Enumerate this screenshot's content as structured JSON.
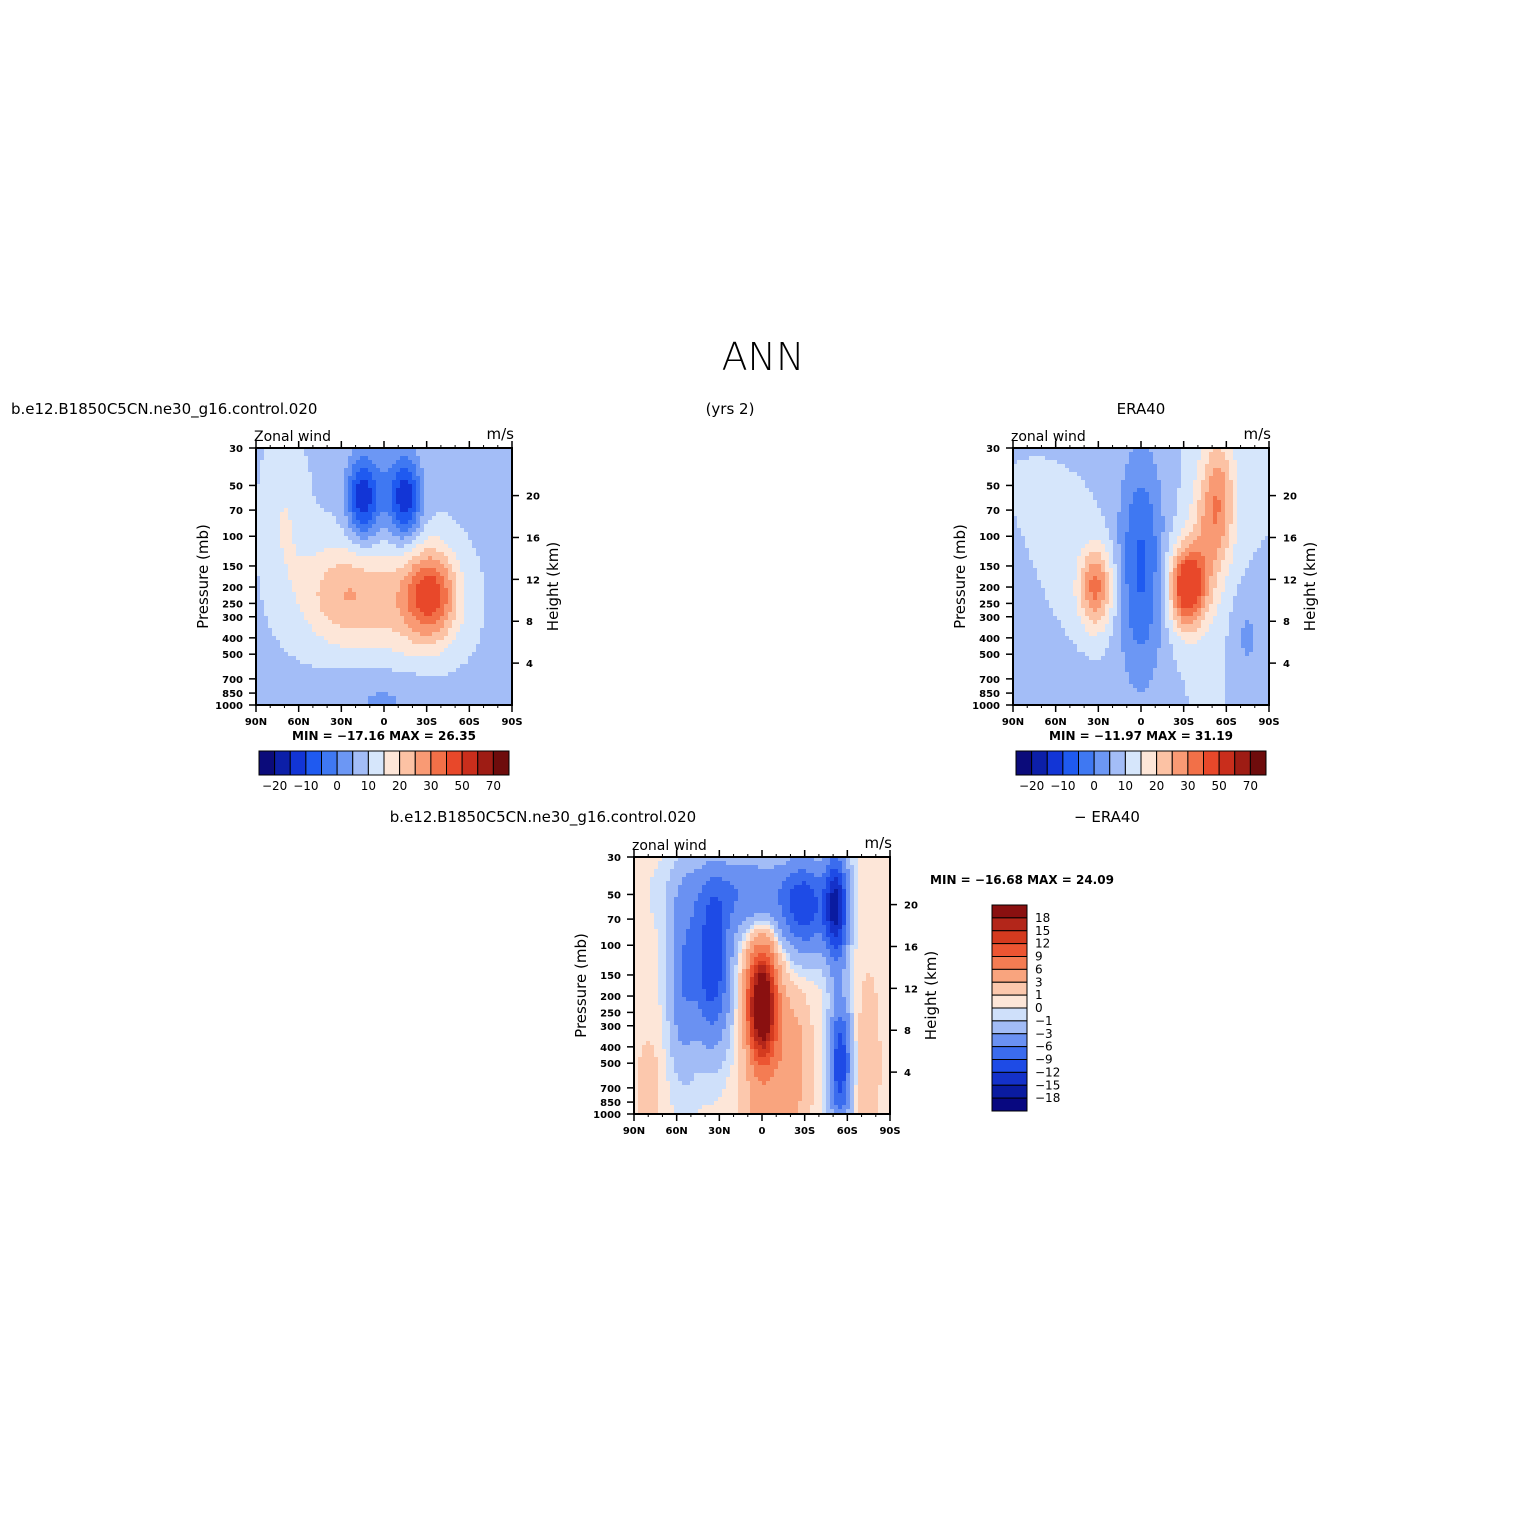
{
  "figure": {
    "title": "ANN",
    "top_left_label": "b.e12.B1850C5CN.ne30_g16.control.020",
    "top_center_label": "(yrs 2)",
    "top_right_label": "ERA40",
    "diff_left_label": "b.e12.B1850C5CN.ne30_g16.control.020",
    "diff_right_label": "− ERA40"
  },
  "colors": {
    "field_palette": [
      "#0b0b7a",
      "#0c1fa8",
      "#1235d6",
      "#1f5af0",
      "#3f78f2",
      "#6c97f4",
      "#a3bdf7",
      "#d6e6fb",
      "#fde6d8",
      "#fcc2a4",
      "#f99a74",
      "#f27048",
      "#e8482a",
      "#c92e1c",
      "#9e1c14",
      "#6e0c0c"
    ],
    "diff_palette": [
      "#080880",
      "#0a1ba0",
      "#1431c9",
      "#1e4be6",
      "#3b6cee",
      "#6a91f2",
      "#a2bcf6",
      "#cfe0fa",
      "#fde6d8",
      "#fcc8ad",
      "#f9a47e",
      "#f47c53",
      "#ec5532",
      "#d43a1f",
      "#b3261a",
      "#8a1010"
    ]
  },
  "chart_data": [
    {
      "type": "heatmap",
      "panel": "model",
      "title": "Zonal wind",
      "units": "m/s",
      "xlabel": "",
      "ylabel": "Pressure (mb)",
      "ylabel_right": "Height (km)",
      "x_ticks": [
        "90N",
        "60N",
        "30N",
        "0",
        "30S",
        "60S",
        "90S"
      ],
      "y_ticks": [
        30,
        50,
        70,
        100,
        150,
        200,
        250,
        300,
        400,
        500,
        700,
        850,
        1000
      ],
      "y_right_ticks": [
        20,
        16,
        12,
        8,
        4
      ],
      "y_log_scale": true,
      "ylim": [
        30,
        1000
      ],
      "stats": "MIN = −17.16   MAX =   26.35",
      "min": -17.16,
      "max": 26.35,
      "colorbar_labels": [
        "−20",
        "−10",
        "0",
        "10",
        "20",
        "30",
        "50",
        "70"
      ],
      "features": [
        {
          "lat": 15,
          "p": 60,
          "value": -17
        },
        {
          "lat": -15,
          "p": 60,
          "value": -17
        },
        {
          "lat": 0,
          "p": 50,
          "value": -12
        },
        {
          "lat": 30,
          "p": 220,
          "value": 14
        },
        {
          "lat": -33,
          "p": 220,
          "value": 26
        },
        {
          "lat": 70,
          "p": 80,
          "value": 12
        },
        {
          "lat": 0,
          "p": 900,
          "value": -5
        }
      ]
    },
    {
      "type": "heatmap",
      "panel": "ERA40",
      "title": "zonal wind",
      "units": "m/s",
      "xlabel": "",
      "ylabel": "Pressure (mb)",
      "ylabel_right": "Height (km)",
      "x_ticks": [
        "90N",
        "60N",
        "30N",
        "0",
        "30S",
        "60S",
        "90S"
      ],
      "y_ticks": [
        30,
        50,
        70,
        100,
        150,
        200,
        250,
        300,
        400,
        500,
        700,
        850,
        1000
      ],
      "y_right_ticks": [
        20,
        16,
        12,
        8,
        4
      ],
      "y_log_scale": true,
      "ylim": [
        30,
        1000
      ],
      "stats": "MIN = −11.97   MAX =   31.19",
      "min": -11.97,
      "max": 31.19,
      "colorbar_labels": [
        "−20",
        "−10",
        "0",
        "10",
        "20",
        "30",
        "50",
        "70"
      ],
      "features": [
        {
          "lat": 5,
          "p": 50,
          "value": -12
        },
        {
          "lat": 0,
          "p": 150,
          "value": -8
        },
        {
          "lat": 32,
          "p": 200,
          "value": 22
        },
        {
          "lat": -32,
          "p": 200,
          "value": 31
        },
        {
          "lat": -55,
          "p": 60,
          "value": 28
        },
        {
          "lat": -75,
          "p": 400,
          "value": -6
        }
      ]
    },
    {
      "type": "heatmap",
      "panel": "difference",
      "title": "zonal wind",
      "units": "m/s",
      "xlabel": "",
      "ylabel": "Pressure (mb)",
      "ylabel_right": "Height (km)",
      "x_ticks": [
        "90N",
        "60N",
        "30N",
        "0",
        "30S",
        "60S",
        "90S"
      ],
      "y_ticks": [
        30,
        50,
        70,
        100,
        150,
        200,
        250,
        300,
        400,
        500,
        700,
        850,
        1000
      ],
      "y_right_ticks": [
        20,
        16,
        12,
        8,
        4
      ],
      "y_log_scale": true,
      "ylim": [
        30,
        1000
      ],
      "stats": "MIN = −16.68   MAX =   24.09",
      "min": -16.68,
      "max": 24.09,
      "colorbar_labels": [
        "18",
        "15",
        "12",
        "9",
        "6",
        "3",
        "1",
        "0",
        "−1",
        "−3",
        "−6",
        "−9",
        "−12",
        "−15",
        "−18"
      ],
      "features": [
        {
          "lat": 0,
          "p": 230,
          "value": 24
        },
        {
          "lat": 35,
          "p": 130,
          "value": -12
        },
        {
          "lat": -52,
          "p": 60,
          "value": -16
        },
        {
          "lat": -55,
          "p": 500,
          "value": -12
        },
        {
          "lat": 10,
          "p": 50,
          "value": -6
        }
      ]
    }
  ]
}
